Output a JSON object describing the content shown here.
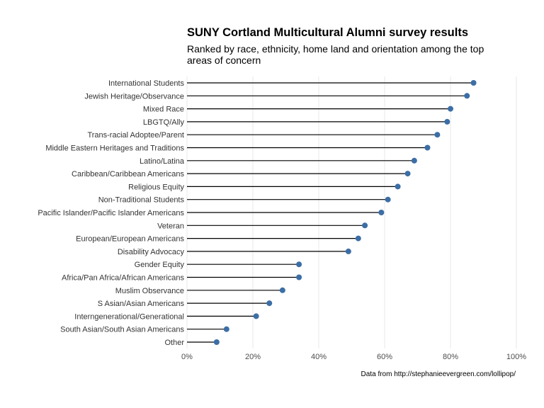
{
  "chart_data": {
    "type": "lollipop",
    "title": "SUNY Cortland Multicultural Alumni survey results",
    "subtitle": "Ranked by race, ethnicity, home land and orientation among the top areas of concern",
    "caption": "Data from http://stephanieevergreen.com/lollipop/",
    "orientation": "horizontal",
    "categories": [
      "International Students",
      "Jewish Heritage/Observance",
      "Mixed Race",
      "LBGTQ/Ally",
      "Trans-racial Adoptee/Parent",
      "Middle Eastern Heritages and Traditions",
      "Latino/Latina",
      "Caribbean/Caribbean Americans",
      "Religious Equity",
      "Non-Traditional Students",
      "Pacific Islander/Pacific Islander Americans",
      "Veteran",
      "European/European Americans",
      "Disability Advocacy",
      "Gender Equity",
      "Africa/Pan Africa/African Americans",
      "Muslim Observance",
      "S Asian/Asian Americans",
      "Interngenerational/Generational",
      "South Asian/South Asian Americans",
      "Other"
    ],
    "values": [
      0.87,
      0.85,
      0.8,
      0.79,
      0.76,
      0.73,
      0.69,
      0.67,
      0.64,
      0.61,
      0.59,
      0.54,
      0.52,
      0.49,
      0.34,
      0.34,
      0.29,
      0.25,
      0.21,
      0.12,
      0.09
    ],
    "xlim": [
      0,
      1
    ],
    "x_ticks": [
      0,
      0.2,
      0.4,
      0.6,
      0.8,
      1.0
    ],
    "x_tick_labels": [
      "0%",
      "20%",
      "40%",
      "60%",
      "80%",
      "100%"
    ],
    "grid": "vertical-major",
    "point_color": "#3c6ea6",
    "line_color": "#000000",
    "grid_color": "#ebebeb"
  }
}
